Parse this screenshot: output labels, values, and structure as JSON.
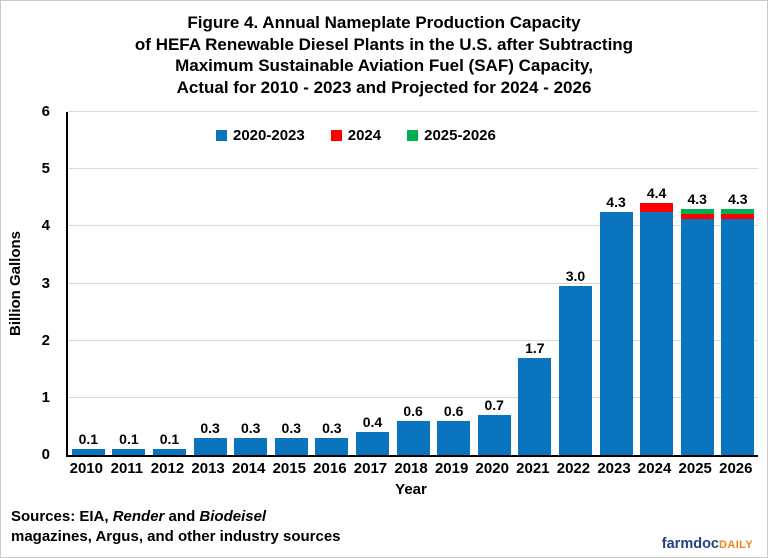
{
  "title": {
    "lines": [
      "Figure 4. Annual Nameplate Production Capacity",
      "of HEFA Renewable Diesel Plants in the U.S. after Subtracting",
      "Maximum Sustainable Aviation Fuel (SAF) Capacity,",
      "Actual for 2010 - 2023 and Projected for 2024 - 2026"
    ]
  },
  "axes": {
    "y_label": "Billion Gallons",
    "x_label": "Year"
  },
  "chart_data": {
    "type": "bar",
    "stacked": true,
    "title": "Figure 4. Annual Nameplate Production Capacity of HEFA Renewable Diesel Plants in the U.S. after Subtracting Maximum Sustainable Aviation Fuel (SAF) Capacity, Actual for 2010 - 2023 and Projected for 2024 - 2026",
    "categories": [
      "2010",
      "2011",
      "2012",
      "2013",
      "2014",
      "2015",
      "2016",
      "2017",
      "2018",
      "2019",
      "2020",
      "2021",
      "2022",
      "2023",
      "2024",
      "2025",
      "2026"
    ],
    "series": [
      {
        "name": "2020-2023",
        "color": "#0b74be",
        "values": [
          0.1,
          0.1,
          0.1,
          0.3,
          0.3,
          0.3,
          0.3,
          0.4,
          0.6,
          0.6,
          0.7,
          1.7,
          2.95,
          4.25,
          4.25,
          4.12,
          4.12
        ]
      },
      {
        "name": "2024",
        "color": "#ff0000",
        "values": [
          0,
          0,
          0,
          0,
          0,
          0,
          0,
          0,
          0,
          0,
          0,
          0,
          0,
          0,
          0.15,
          0.09,
          0.09
        ]
      },
      {
        "name": "2025-2026",
        "color": "#00b050",
        "values": [
          0,
          0,
          0,
          0,
          0,
          0,
          0,
          0,
          0,
          0,
          0,
          0,
          0,
          0,
          0,
          0.09,
          0.09
        ]
      }
    ],
    "bar_totals": [
      0.1,
      0.1,
      0.1,
      0.3,
      0.3,
      0.3,
      0.3,
      0.4,
      0.6,
      0.6,
      0.7,
      1.7,
      3.0,
      4.3,
      4.4,
      4.3,
      4.3
    ],
    "bar_labels": [
      "0.1",
      "0.1",
      "0.1",
      "0.3",
      "0.3",
      "0.3",
      "0.3",
      "0.4",
      "0.6",
      "0.6",
      "0.7",
      "1.7",
      "3.0",
      "4.3",
      "4.4",
      "4.3",
      "4.3"
    ],
    "xlabel": "Year",
    "ylabel": "Billion Gallons",
    "ylim": [
      0,
      6
    ],
    "yticks": [
      0,
      1,
      2,
      3,
      4,
      5,
      6
    ],
    "grid": true,
    "legend_position": "top-center-inside"
  },
  "sources": {
    "prefix": "Sources: EIA, ",
    "italic1": "Render",
    "mid": " and ",
    "italic2": "Biodeisel",
    "line2": "magazines, Argus, and other industry sources"
  },
  "branding": {
    "name": "farmdoc",
    "suffix": "DAILY"
  },
  "colors": {
    "bar_blue": "#0b74be",
    "bar_red": "#ff0000",
    "bar_green": "#00b050",
    "gridline": "#d9d9d9",
    "axis": "#000000",
    "brand_navy": "#26417f",
    "brand_orange": "#f58220"
  }
}
